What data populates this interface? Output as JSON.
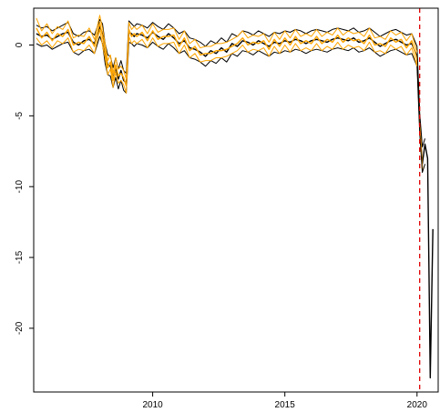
{
  "chart_data": {
    "type": "line",
    "title": "",
    "xlabel": "",
    "ylabel": "",
    "xlim": [
      2005.5,
      2020.8
    ],
    "ylim": [
      -24.5,
      2.6
    ],
    "xticks": [
      2010,
      2015,
      2020
    ],
    "xtick_labels": [
      "2010",
      "2015",
      "2020"
    ],
    "yticks": [
      0,
      -5,
      -10,
      -15,
      -20
    ],
    "ytick_labels": [
      "0",
      "-5",
      "-10",
      "-15",
      "-20"
    ],
    "vline": {
      "x": 2020.1,
      "color": "#e00000",
      "style": "dashed"
    },
    "series": [
      {
        "role": "estimate",
        "color": "#000000",
        "x": [
          2005.6,
          2005.8,
          2006.0,
          2006.2,
          2006.4,
          2006.6,
          2006.8,
          2007.0,
          2007.2,
          2007.4,
          2007.6,
          2007.8,
          2008.0,
          2008.1,
          2008.2,
          2008.3,
          2008.4,
          2008.5,
          2008.6,
          2008.7,
          2008.8,
          2008.9,
          2009.0,
          2009.1,
          2009.2,
          2009.3,
          2009.4,
          2009.6,
          2009.8,
          2010.0,
          2010.2,
          2010.4,
          2010.6,
          2010.8,
          2011.0,
          2011.2,
          2011.4,
          2011.6,
          2011.8,
          2012.0,
          2012.2,
          2012.4,
          2012.6,
          2012.8,
          2013.0,
          2013.2,
          2013.4,
          2013.6,
          2013.8,
          2014.0,
          2014.2,
          2014.4,
          2014.6,
          2014.8,
          2015.0,
          2015.2,
          2015.4,
          2015.6,
          2015.8,
          2016.0,
          2016.2,
          2016.4,
          2016.6,
          2016.8,
          2017.0,
          2017.2,
          2017.4,
          2017.6,
          2017.8,
          2018.0,
          2018.2,
          2018.4,
          2018.6,
          2018.8,
          2019.0,
          2019.2,
          2019.4,
          2019.6,
          2019.8,
          2020.0,
          2020.1,
          2020.2,
          2020.3,
          2020.4,
          2020.5,
          2020.6
        ],
        "values": [
          0.8,
          0.6,
          0.7,
          0.4,
          0.6,
          0.8,
          0.9,
          0.2,
          0.0,
          0.3,
          0.4,
          0.1,
          1.3,
          0.8,
          -0.6,
          -1.4,
          -1.5,
          -2.3,
          -1.6,
          -2.4,
          -1.8,
          -2.5,
          -2.7,
          0.9,
          0.8,
          0.6,
          0.8,
          0.7,
          0.5,
          0.9,
          0.6,
          0.4,
          0.8,
          0.5,
          0.1,
          0.3,
          -0.2,
          -0.3,
          -0.5,
          -0.8,
          -0.4,
          -0.6,
          -0.2,
          -0.5,
          0.1,
          -0.1,
          0.3,
          0.2,
          0.0,
          0.3,
          0.1,
          -0.1,
          0.2,
          0.1,
          0.3,
          0.2,
          0.4,
          0.3,
          0.1,
          0.3,
          0.4,
          0.3,
          0.2,
          0.4,
          0.5,
          0.4,
          0.3,
          0.5,
          0.2,
          0.3,
          0.5,
          0.2,
          -0.1,
          0.1,
          0.3,
          0.4,
          0.2,
          0.0,
          0.1,
          -0.8,
          -5.5,
          -8.4,
          -7.0,
          -8.0,
          -23.5,
          -13.0
        ]
      },
      {
        "role": "estimate",
        "color": "#ffa500",
        "x": [
          2005.6,
          2005.8,
          2006.0,
          2006.2,
          2006.4,
          2006.6,
          2006.8,
          2007.0,
          2007.2,
          2007.4,
          2007.6,
          2007.8,
          2008.0,
          2008.1,
          2008.2,
          2008.3,
          2008.4,
          2008.5,
          2008.6,
          2008.7,
          2008.8,
          2008.9,
          2009.0,
          2009.1,
          2009.2,
          2009.3,
          2009.4,
          2009.6,
          2009.8,
          2010.0,
          2010.2,
          2010.4,
          2010.6,
          2010.8,
          2011.0,
          2011.2,
          2011.4,
          2011.6,
          2011.8,
          2012.0,
          2012.2,
          2012.4,
          2012.6,
          2012.8,
          2013.0,
          2013.2,
          2013.4,
          2013.6,
          2013.8,
          2014.0,
          2014.2,
          2014.4,
          2014.6,
          2014.8,
          2015.0,
          2015.2,
          2015.4,
          2015.6,
          2015.8,
          2016.0,
          2016.2,
          2016.4,
          2016.6,
          2016.8,
          2017.0,
          2017.2,
          2017.4,
          2017.6,
          2017.8,
          2018.0,
          2018.2,
          2018.4,
          2018.6,
          2018.8,
          2019.0,
          2019.2,
          2019.4,
          2019.6,
          2019.8,
          2020.0,
          2020.1,
          2020.2
        ],
        "values": [
          1.2,
          0.5,
          0.9,
          0.3,
          0.8,
          0.6,
          1.1,
          0.0,
          0.2,
          0.1,
          0.6,
          -0.1,
          1.6,
          0.6,
          -0.4,
          -1.6,
          -1.2,
          -2.5,
          -1.4,
          -2.2,
          -2.0,
          -2.3,
          -2.9,
          1.1,
          0.6,
          0.8,
          0.6,
          0.9,
          0.3,
          1.0,
          0.4,
          0.6,
          0.6,
          0.7,
          -0.1,
          0.5,
          -0.4,
          -0.1,
          -0.7,
          -0.6,
          -0.6,
          -0.4,
          -0.4,
          -0.3,
          -0.1,
          0.1,
          0.5,
          0.0,
          0.2,
          0.1,
          0.3,
          -0.3,
          0.4,
          -0.1,
          0.5,
          0.0,
          0.6,
          0.1,
          0.3,
          0.1,
          0.6,
          0.1,
          0.4,
          0.2,
          0.7,
          0.2,
          0.5,
          0.3,
          0.4,
          0.1,
          0.7,
          0.0,
          0.1,
          -0.1,
          0.5,
          0.2,
          0.4,
          -0.2,
          0.3,
          -1.0,
          -5.3,
          -8.8
        ]
      },
      {
        "role": "upper",
        "color": "#000000",
        "x": [
          2005.6,
          2005.8,
          2006.0,
          2006.2,
          2006.4,
          2006.6,
          2006.8,
          2007.0,
          2007.2,
          2007.4,
          2007.6,
          2007.8,
          2008.0,
          2008.1,
          2008.2,
          2008.3,
          2008.4,
          2008.5,
          2008.6,
          2008.7,
          2008.8,
          2008.9,
          2009.0,
          2009.1,
          2009.2,
          2009.3,
          2009.4,
          2009.6,
          2009.8,
          2010.0,
          2010.2,
          2010.4,
          2010.6,
          2010.8,
          2011.0,
          2011.2,
          2011.4,
          2011.6,
          2011.8,
          2012.0,
          2012.2,
          2012.4,
          2012.6,
          2012.8,
          2013.0,
          2013.2,
          2013.4,
          2013.6,
          2013.8,
          2014.0,
          2014.2,
          2014.4,
          2014.6,
          2014.8,
          2015.0,
          2015.2,
          2015.4,
          2015.6,
          2015.8,
          2016.0,
          2016.2,
          2016.4,
          2016.6,
          2016.8,
          2017.0,
          2017.2,
          2017.4,
          2017.6,
          2017.8,
          2018.0,
          2018.2,
          2018.4,
          2018.6,
          2018.8,
          2019.0,
          2019.2,
          2019.4,
          2019.6,
          2019.8,
          2020.0,
          2020.1,
          2020.2,
          2020.3
        ],
        "values": [
          1.4,
          1.2,
          1.3,
          1.0,
          1.2,
          1.4,
          1.6,
          0.8,
          0.6,
          0.9,
          1.0,
          0.7,
          1.8,
          1.5,
          0.1,
          -0.7,
          -0.8,
          -1.6,
          -0.9,
          -1.7,
          -1.1,
          -1.8,
          -2.0,
          1.7,
          1.5,
          1.3,
          1.5,
          1.4,
          1.2,
          1.6,
          1.3,
          1.1,
          1.5,
          1.2,
          0.8,
          1.0,
          0.5,
          0.4,
          0.2,
          -0.1,
          0.3,
          0.1,
          0.5,
          0.2,
          0.8,
          0.6,
          1.0,
          0.9,
          0.7,
          1.0,
          0.8,
          0.6,
          0.9,
          0.8,
          1.0,
          0.9,
          1.1,
          1.0,
          0.8,
          1.0,
          1.1,
          1.0,
          0.9,
          1.1,
          1.2,
          1.1,
          1.0,
          1.2,
          0.9,
          1.0,
          1.2,
          0.9,
          0.6,
          0.8,
          1.0,
          1.1,
          0.9,
          0.7,
          0.8,
          -0.1,
          -4.8,
          -7.2,
          -6.6
        ]
      },
      {
        "role": "lower",
        "color": "#000000",
        "x": [
          2005.6,
          2005.8,
          2006.0,
          2006.2,
          2006.4,
          2006.6,
          2006.8,
          2007.0,
          2007.2,
          2007.4,
          2007.6,
          2007.8,
          2008.0,
          2008.1,
          2008.2,
          2008.3,
          2008.4,
          2008.5,
          2008.6,
          2008.7,
          2008.8,
          2008.9,
          2009.0,
          2009.1,
          2009.2,
          2009.3,
          2009.4,
          2009.6,
          2009.8,
          2010.0,
          2010.2,
          2010.4,
          2010.6,
          2010.8,
          2011.0,
          2011.2,
          2011.4,
          2011.6,
          2011.8,
          2012.0,
          2012.2,
          2012.4,
          2012.6,
          2012.8,
          2013.0,
          2013.2,
          2013.4,
          2013.6,
          2013.8,
          2014.0,
          2014.2,
          2014.4,
          2014.6,
          2014.8,
          2015.0,
          2015.2,
          2015.4,
          2015.6,
          2015.8,
          2016.0,
          2016.2,
          2016.4,
          2016.6,
          2016.8,
          2017.0,
          2017.2,
          2017.4,
          2017.6,
          2017.8,
          2018.0,
          2018.2,
          2018.4,
          2018.6,
          2018.8,
          2019.0,
          2019.2,
          2019.4,
          2019.6,
          2019.8,
          2020.0,
          2020.1,
          2020.2,
          2020.3
        ],
        "values": [
          0.1,
          -0.1,
          0.0,
          -0.3,
          -0.1,
          0.1,
          0.2,
          -0.5,
          -0.7,
          -0.4,
          -0.3,
          -0.6,
          0.6,
          0.1,
          -1.3,
          -2.1,
          -2.2,
          -3.0,
          -2.3,
          -3.1,
          -2.5,
          -3.2,
          -3.4,
          0.2,
          0.1,
          -0.1,
          0.1,
          0.0,
          -0.2,
          0.2,
          -0.1,
          -0.3,
          0.1,
          -0.2,
          -0.6,
          -0.4,
          -0.9,
          -1.0,
          -1.2,
          -1.5,
          -1.1,
          -1.3,
          -0.9,
          -1.2,
          -0.6,
          -0.8,
          -0.4,
          -0.5,
          -0.7,
          -0.4,
          -0.6,
          -0.8,
          -0.5,
          -0.6,
          -0.4,
          -0.5,
          -0.3,
          -0.4,
          -0.6,
          -0.4,
          -0.3,
          -0.4,
          -0.5,
          -0.3,
          -0.2,
          -0.3,
          -0.4,
          -0.2,
          -0.5,
          -0.4,
          -0.2,
          -0.5,
          -0.8,
          -0.6,
          -0.4,
          -0.3,
          -0.5,
          -0.7,
          -0.6,
          -1.5,
          -6.2,
          -9.0,
          -8.4
        ]
      },
      {
        "role": "upper",
        "color": "#ffa500",
        "x": [
          2005.6,
          2005.8,
          2006.0,
          2006.2,
          2006.4,
          2006.6,
          2006.8,
          2007.0,
          2007.2,
          2007.4,
          2007.6,
          2007.8,
          2008.0,
          2008.1,
          2008.2,
          2008.3,
          2008.4,
          2008.5,
          2008.6,
          2008.7,
          2008.8,
          2008.9,
          2009.0,
          2009.1,
          2009.2,
          2009.3,
          2009.4,
          2009.6,
          2009.8,
          2010.0,
          2010.2,
          2010.4,
          2010.6,
          2010.8,
          2011.0,
          2011.2,
          2011.4,
          2011.6,
          2011.8,
          2012.0,
          2012.2,
          2012.4,
          2012.6,
          2012.8,
          2013.0,
          2013.2,
          2013.4,
          2013.6,
          2013.8,
          2014.0,
          2014.2,
          2014.4,
          2014.6,
          2014.8,
          2015.0,
          2015.2,
          2015.4,
          2015.6,
          2015.8,
          2016.0,
          2016.2,
          2016.4,
          2016.6,
          2016.8,
          2017.0,
          2017.2,
          2017.4,
          2017.6,
          2017.8,
          2018.0,
          2018.2,
          2018.4,
          2018.6,
          2018.8,
          2019.0,
          2019.2,
          2019.4,
          2019.6,
          2019.8,
          2020.0
        ],
        "values": [
          1.9,
          1.0,
          1.5,
          0.8,
          1.3,
          1.1,
          1.7,
          0.5,
          0.7,
          0.6,
          1.2,
          0.4,
          2.1,
          1.2,
          0.1,
          -1.1,
          -0.7,
          -2.0,
          -0.9,
          -1.7,
          -1.5,
          -1.8,
          -2.4,
          1.6,
          1.1,
          1.3,
          1.1,
          1.4,
          0.8,
          1.5,
          0.9,
          1.1,
          1.1,
          1.2,
          0.4,
          1.0,
          0.1,
          0.4,
          -0.2,
          -0.1,
          -0.1,
          0.1,
          0.1,
          0.2,
          0.4,
          0.6,
          1.0,
          0.5,
          0.7,
          0.6,
          0.8,
          0.2,
          0.9,
          0.4,
          1.0,
          0.5,
          1.1,
          0.6,
          0.8,
          0.6,
          1.1,
          0.6,
          0.9,
          0.7,
          1.2,
          0.7,
          1.0,
          0.8,
          0.9,
          0.6,
          1.2,
          0.5,
          0.6,
          0.4,
          1.0,
          0.7,
          0.9,
          0.3,
          0.8,
          -0.5
        ]
      },
      {
        "role": "lower",
        "color": "#ffa500",
        "x": [
          2005.6,
          2005.8,
          2006.0,
          2006.2,
          2006.4,
          2006.6,
          2006.8,
          2007.0,
          2007.2,
          2007.4,
          2007.6,
          2007.8,
          2008.0,
          2008.1,
          2008.2,
          2008.3,
          2008.4,
          2008.5,
          2008.6,
          2008.7,
          2008.8,
          2008.9,
          2009.0,
          2009.1,
          2009.2,
          2009.3,
          2009.4,
          2009.6,
          2009.8,
          2010.0,
          2010.2,
          2010.4,
          2010.6,
          2010.8,
          2011.0,
          2011.2,
          2011.4,
          2011.6,
          2011.8,
          2012.0,
          2012.2,
          2012.4,
          2012.6,
          2012.8,
          2013.0,
          2013.2,
          2013.4,
          2013.6,
          2013.8,
          2014.0,
          2014.2,
          2014.4,
          2014.6,
          2014.8,
          2015.0,
          2015.2,
          2015.4,
          2015.6,
          2015.8,
          2016.0,
          2016.2,
          2016.4,
          2016.6,
          2016.8,
          2017.0,
          2017.2,
          2017.4,
          2017.6,
          2017.8,
          2018.0,
          2018.2,
          2018.4,
          2018.6,
          2018.8,
          2019.0,
          2019.2,
          2019.4,
          2019.6,
          2019.8,
          2020.0
        ],
        "values": [
          0.5,
          0.0,
          0.3,
          -0.2,
          0.3,
          0.1,
          0.5,
          -0.5,
          -0.3,
          -0.4,
          0.0,
          -0.6,
          1.1,
          0.0,
          -0.9,
          -2.1,
          -1.7,
          -3.0,
          -1.9,
          -2.7,
          -2.5,
          -2.8,
          -3.4,
          0.6,
          0.1,
          0.3,
          0.1,
          0.4,
          -0.2,
          0.5,
          -0.1,
          0.1,
          0.1,
          0.2,
          -0.6,
          0.0,
          -0.9,
          -0.6,
          -1.2,
          -1.1,
          -1.1,
          -0.9,
          -0.9,
          -0.8,
          -0.6,
          -0.4,
          0.0,
          -0.5,
          -0.3,
          -0.4,
          -0.2,
          -0.8,
          -0.1,
          -0.6,
          0.0,
          -0.5,
          0.1,
          -0.4,
          -0.2,
          -0.4,
          0.1,
          -0.4,
          -0.1,
          -0.3,
          0.2,
          -0.3,
          0.0,
          -0.2,
          -0.1,
          -0.4,
          0.2,
          -0.5,
          -0.4,
          -0.6,
          0.0,
          -0.3,
          -0.1,
          -0.7,
          -0.2,
          -1.5
        ]
      }
    ]
  }
}
